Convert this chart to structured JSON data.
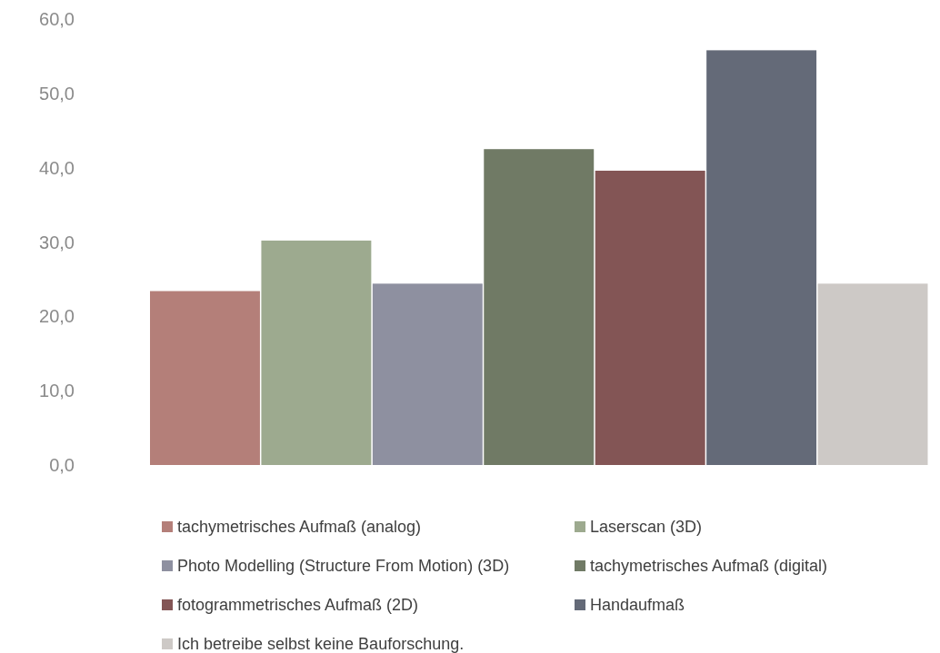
{
  "chart_data": {
    "type": "bar",
    "categories": [
      null
    ],
    "series": [
      {
        "name": "tachymetrisches Aufmaß (analog)",
        "color": "#b47f79",
        "values": [
          23.4
        ]
      },
      {
        "name": "Laserscan (3D)",
        "color": "#9daa8f",
        "values": [
          30.2
        ]
      },
      {
        "name": "Photo Modelling (Structure From Motion) (3D)",
        "color": "#8e90a0",
        "values": [
          24.4
        ]
      },
      {
        "name": "tachymetrisches Aufmaß (digital)",
        "color": "#707a65",
        "values": [
          42.5
        ]
      },
      {
        "name": "fotogrammetrisches Aufmaß (2D)",
        "color": "#835555",
        "values": [
          39.6
        ]
      },
      {
        "name": "Handaufmaß",
        "color": "#646a78",
        "values": [
          55.8
        ]
      },
      {
        "name": "Ich betreibe selbst keine Bauforschung.",
        "color": "#cdc9c6",
        "values": [
          24.4
        ]
      }
    ],
    "ylim": [
      0,
      60
    ],
    "yticks": [
      {
        "value": 0,
        "label": "0,0"
      },
      {
        "value": 10,
        "label": "10,0"
      },
      {
        "value": 20,
        "label": "20,0"
      },
      {
        "value": 30,
        "label": "30,0"
      },
      {
        "value": 40,
        "label": "40,0"
      },
      {
        "value": 50,
        "label": "50,0"
      },
      {
        "value": 60,
        "label": "60,0"
      }
    ],
    "grid": false,
    "legend": "bottom"
  }
}
